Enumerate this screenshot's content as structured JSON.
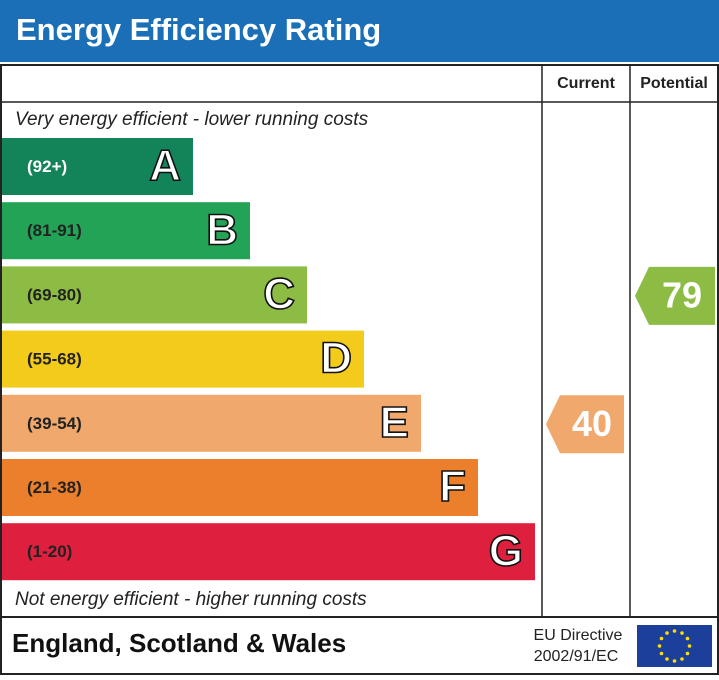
{
  "title": "Energy Efficiency Rating",
  "headers": {
    "current": "Current",
    "potential": "Potential"
  },
  "top_note": "Very energy efficient - lower running costs",
  "bottom_note": "Not energy efficient - higher running costs",
  "bands": [
    {
      "range": "(92+)",
      "letter": "A",
      "color": "#13845a"
    },
    {
      "range": "(81-91)",
      "letter": "B",
      "color": "#22a356"
    },
    {
      "range": "(69-80)",
      "letter": "C",
      "color": "#8cbc43"
    },
    {
      "range": "(55-68)",
      "letter": "D",
      "color": "#f3cc1b"
    },
    {
      "range": "(39-54)",
      "letter": "E",
      "color": "#f0a86d"
    },
    {
      "range": "(21-38)",
      "letter": "F",
      "color": "#eb7f2b"
    },
    {
      "range": "(1-20)",
      "letter": "G",
      "color": "#df1f3e"
    }
  ],
  "ratings": {
    "current": 40,
    "potential": 79
  },
  "footer": {
    "region": "England, Scotland & Wales",
    "directive_line1": "EU Directive",
    "directive_line2": "2002/91/EC"
  }
}
